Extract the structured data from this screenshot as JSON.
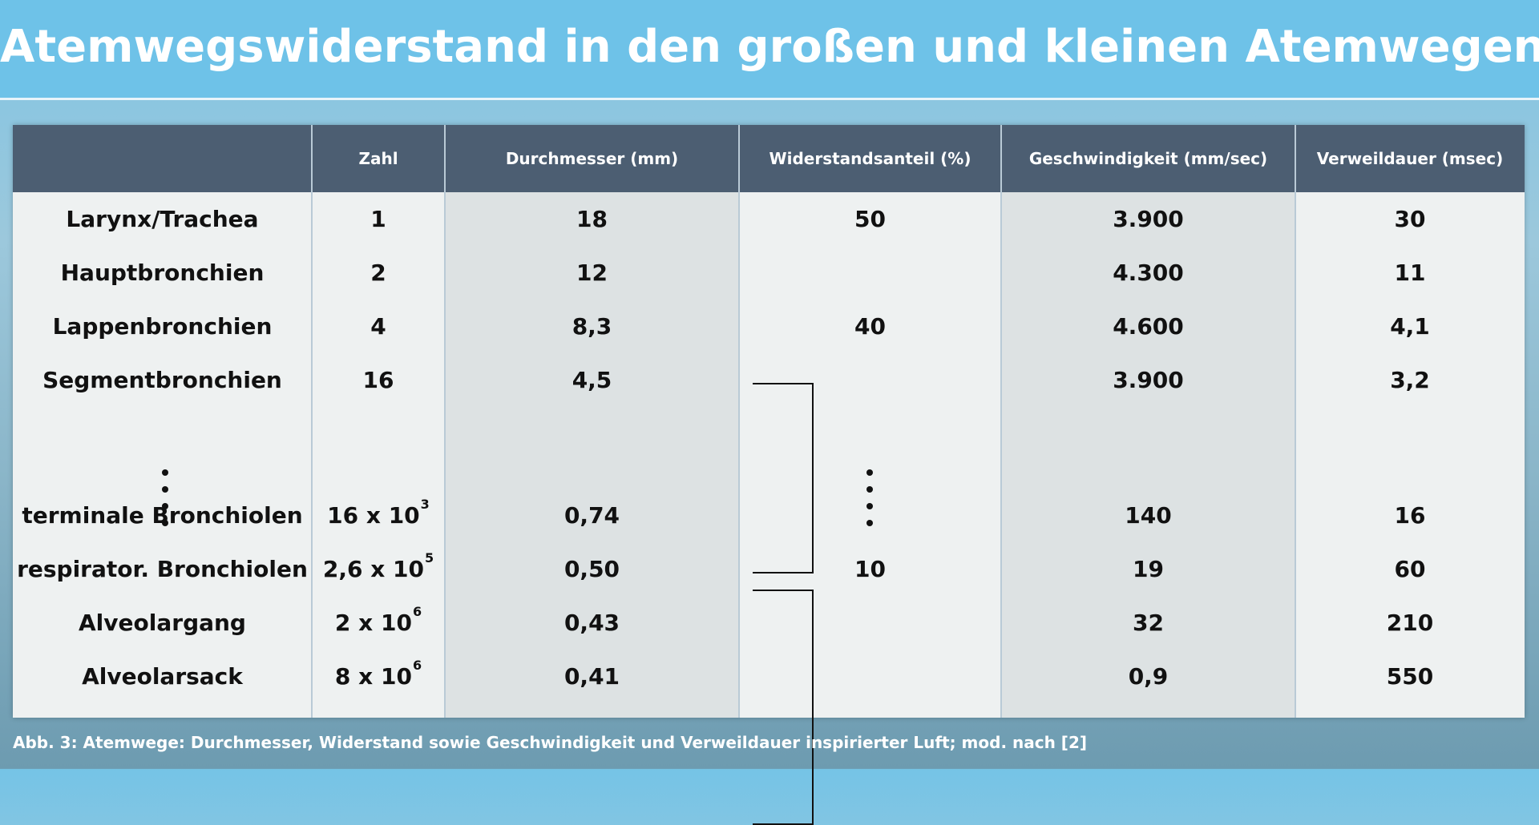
{
  "title": "Atemwegswiderstand in den großen und kleinen Atemwegen",
  "table": {
    "headers": [
      "",
      "Zahl",
      "Durchmesser (mm)",
      "Widerstandsanteil (%)",
      "Geschwindigkeit (mm/sec)",
      "Verweildauer (msec)"
    ],
    "rows": [
      {
        "name": "Larynx/Trachea",
        "zahl": "1",
        "zahl_exp": "",
        "durchmesser": "18",
        "widerstand": "50",
        "geschwindigkeit": "3.900",
        "verweildauer": "30"
      },
      {
        "name": "Hauptbronchien",
        "zahl": "2",
        "zahl_exp": "",
        "durchmesser": "12",
        "widerstand": "",
        "geschwindigkeit": "4.300",
        "verweildauer": "11"
      },
      {
        "name": "Lappenbronchien",
        "zahl": "4",
        "zahl_exp": "",
        "durchmesser": "8,3",
        "widerstand": "40",
        "geschwindigkeit": "4.600",
        "verweildauer": "4,1"
      },
      {
        "name": "Segmentbronchien",
        "zahl": "16",
        "zahl_exp": "",
        "durchmesser": "4,5",
        "widerstand": "",
        "geschwindigkeit": "3.900",
        "verweildauer": "3,2"
      },
      {
        "name": "terminale Bronchiolen",
        "zahl": "16 x 10",
        "zahl_exp": "3",
        "durchmesser": "0,74",
        "widerstand": "",
        "geschwindigkeit": "140",
        "verweildauer": "16"
      },
      {
        "name": "respirator. Bronchiolen",
        "zahl": "2,6 x 10",
        "zahl_exp": "5",
        "durchmesser": "0,50",
        "widerstand": "10",
        "geschwindigkeit": "19",
        "verweildauer": "60"
      },
      {
        "name": "Alveolargang",
        "zahl": "2 x 10",
        "zahl_exp": "6",
        "durchmesser": "0,43",
        "widerstand": "",
        "geschwindigkeit": "32",
        "verweildauer": "210"
      },
      {
        "name": "Alveolarsack",
        "zahl": "8 x 10",
        "zahl_exp": "6",
        "durchmesser": "0,41",
        "widerstand": "",
        "geschwindigkeit": "0,9",
        "verweildauer": "550"
      }
    ]
  },
  "caption": "Abb. 3: Atemwege: Durchmesser, Widerstand sowie Geschwindigkeit und Verweildauer inspirierter Luft; mod. nach [2]"
}
